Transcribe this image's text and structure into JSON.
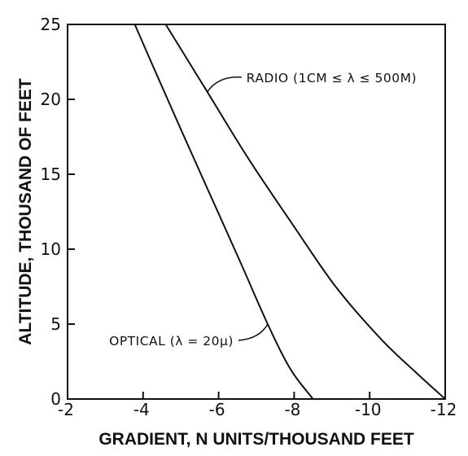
{
  "chart_data": {
    "type": "line",
    "title": "",
    "xlabel": "GRADIENT, N UNITS/THOUSAND FEET",
    "ylabel": "ALTITUDE, THOUSAND OF FEET",
    "xlim": [
      -2,
      -12
    ],
    "ylim": [
      0,
      25
    ],
    "x_ticks": [
      -2,
      -4,
      -6,
      -8,
      -10,
      -12
    ],
    "x_tick_labels": [
      "-2",
      "-4",
      "-6",
      "-8",
      "-10",
      "-12"
    ],
    "y_ticks": [
      0,
      5,
      10,
      15,
      20,
      25
    ],
    "y_tick_labels": [
      "0",
      "5",
      "10",
      "15",
      "20",
      "25"
    ],
    "grid": false,
    "line_color": "#111111",
    "series": [
      {
        "name": "OPTICAL (λ = 20μ)",
        "x": [
          -3.78,
          -4.3,
          -5.0,
          -5.8,
          -6.6,
          -7.3,
          -7.9,
          -8.5
        ],
        "y": [
          25,
          22,
          18,
          13.5,
          9,
          5,
          2,
          0
        ]
      },
      {
        "name": "RADIO (1CM ≤ λ ≤ 500M)",
        "x": [
          -4.6,
          -5.7,
          -6.8,
          -8.0,
          -9.1,
          -10.3,
          -11.3,
          -12.0
        ],
        "y": [
          25,
          20.5,
          16,
          11.5,
          7.5,
          4.0,
          1.6,
          0
        ]
      }
    ],
    "annotations": [
      {
        "text": "RADIO (1CM ≤ λ ≤ 500M)",
        "series": 1,
        "x": -5.7,
        "y": 20.5
      },
      {
        "text": "OPTICAL (λ = 20μ)",
        "series": 0,
        "x": -7.3,
        "y": 5.0
      }
    ]
  }
}
